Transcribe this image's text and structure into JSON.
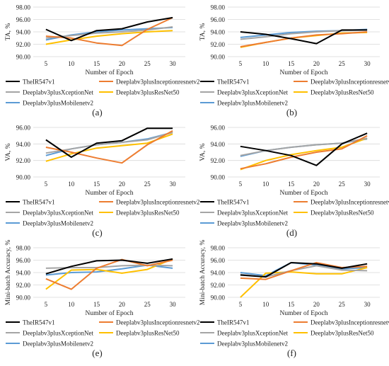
{
  "colors": {
    "TheIR547v1": "#000000",
    "Deeplabv3plusInceptionresnetv2": "#ED7D31",
    "Deeplabv3plusXceptionNet": "#A5A5A5",
    "Deeplabv3plusResNet50": "#FFC000",
    "Deeplabv3plusMobilenetv2": "#5B9BD5"
  },
  "chart_data": [
    {
      "type": "line",
      "panel_label": "(a)",
      "xlabel": "Number of Epoch",
      "ylabel": "TA, %",
      "categories": [
        5,
        10,
        15,
        20,
        25,
        30
      ],
      "ylim": [
        90,
        98
      ],
      "yticks": [
        "90.00",
        "92.00",
        "94.00",
        "96.00",
        "98.00"
      ],
      "grid": true,
      "legend_position": "bottom",
      "series": [
        {
          "name": "TheIR547v1",
          "values": [
            94.4,
            92.6,
            94.2,
            94.5,
            95.6,
            96.3
          ]
        },
        {
          "name": "Deeplabv3plusInceptionresnetv2",
          "values": [
            93.3,
            93.0,
            92.2,
            91.8,
            94.4,
            96.3
          ]
        },
        {
          "name": "Deeplabv3plusXceptionNet",
          "values": [
            93.0,
            93.4,
            93.8,
            94.0,
            94.3,
            94.8
          ]
        },
        {
          "name": "Deeplabv3plusResNet50",
          "values": [
            92.0,
            92.7,
            93.3,
            93.7,
            94.0,
            94.2
          ]
        },
        {
          "name": "Deeplabv3plusMobilenetv2",
          "values": [
            92.7,
            93.5,
            94.0,
            94.3,
            94.5,
            94.7
          ]
        }
      ]
    },
    {
      "type": "line",
      "panel_label": "(b)",
      "xlabel": "Number of Epoch",
      "ylabel": "TA, %",
      "categories": [
        5,
        10,
        15,
        20,
        25,
        30
      ],
      "ylim": [
        90,
        98
      ],
      "yticks": [
        "90.00",
        "92.00",
        "94.00",
        "96.00",
        "98.00"
      ],
      "grid": true,
      "legend_position": "bottom",
      "series": [
        {
          "name": "TheIR547v1",
          "values": [
            94.0,
            93.6,
            92.9,
            92.1,
            94.3,
            94.3
          ]
        },
        {
          "name": "Deeplabv3plusInceptionresnetv2",
          "values": [
            91.6,
            92.3,
            93.0,
            93.5,
            93.7,
            94.0
          ]
        },
        {
          "name": "Deeplabv3plusXceptionNet",
          "values": [
            92.8,
            93.2,
            93.7,
            94.0,
            94.2,
            94.3
          ]
        },
        {
          "name": "Deeplabv3plusResNet50",
          "values": [
            91.5,
            92.3,
            93.0,
            93.4,
            93.8,
            93.9
          ]
        },
        {
          "name": "Deeplabv3plusMobilenetv2",
          "values": [
            93.1,
            93.5,
            93.9,
            94.1,
            94.2,
            94.4
          ]
        }
      ]
    },
    {
      "type": "line",
      "panel_label": "(c)",
      "xlabel": "Number of Epoch",
      "ylabel": "VA, %",
      "categories": [
        5,
        10,
        15,
        20,
        25,
        30
      ],
      "ylim": [
        90,
        96
      ],
      "yticks": [
        "90.00",
        "92.00",
        "94.00",
        "96.00"
      ],
      "grid": true,
      "legend_position": "bottom",
      "series": [
        {
          "name": "TheIR547v1",
          "values": [
            94.5,
            92.4,
            94.1,
            94.4,
            95.9,
            95.9
          ]
        },
        {
          "name": "Deeplabv3plusInceptionresnetv2",
          "values": [
            93.6,
            93.0,
            92.3,
            91.7,
            93.9,
            95.6
          ]
        },
        {
          "name": "Deeplabv3plusXceptionNet",
          "values": [
            92.9,
            93.4,
            93.9,
            94.2,
            94.5,
            95.4
          ]
        },
        {
          "name": "Deeplabv3plusResNet50",
          "values": [
            91.9,
            92.8,
            93.5,
            93.8,
            94.1,
            95.2
          ]
        },
        {
          "name": "Deeplabv3plusMobilenetv2",
          "values": [
            92.6,
            93.4,
            93.9,
            94.2,
            94.6,
            95.4
          ]
        }
      ]
    },
    {
      "type": "line",
      "panel_label": "(d)",
      "xlabel": "Number of Epoch",
      "ylabel": "VA, %",
      "categories": [
        5,
        10,
        15,
        20,
        25,
        30
      ],
      "ylim": [
        90,
        96
      ],
      "yticks": [
        "90.00",
        "92.00",
        "94.00",
        "96.00"
      ],
      "grid": true,
      "legend_position": "bottom",
      "series": [
        {
          "name": "TheIR547v1",
          "values": [
            93.7,
            93.2,
            92.6,
            91.4,
            94.0,
            95.3
          ]
        },
        {
          "name": "Deeplabv3plusInceptionresnetv2",
          "values": [
            91.0,
            91.6,
            92.4,
            93.0,
            93.4,
            95.0
          ]
        },
        {
          "name": "Deeplabv3plusXceptionNet",
          "values": [
            92.6,
            93.2,
            93.6,
            93.9,
            94.1,
            94.7
          ]
        },
        {
          "name": "Deeplabv3plusResNet50",
          "values": [
            90.9,
            92.0,
            92.7,
            93.2,
            93.6,
            94.7
          ]
        },
        {
          "name": "Deeplabv3plusMobilenetv2",
          "values": [
            92.5,
            93.2,
            93.6,
            93.9,
            94.1,
            94.6
          ]
        }
      ]
    },
    {
      "type": "line",
      "panel_label": "(e)",
      "xlabel": "Number of Epoch",
      "ylabel": "Mini-batch Accuracy, %",
      "categories": [
        5,
        10,
        15,
        20,
        25,
        30
      ],
      "ylim": [
        90,
        98
      ],
      "yticks": [
        "90.00",
        "92.00",
        "94.00",
        "96.00",
        "98.00"
      ],
      "grid": true,
      "legend_position": "bottom",
      "series": [
        {
          "name": "TheIR547v1",
          "values": [
            93.8,
            95.0,
            95.9,
            96.0,
            95.5,
            96.2
          ]
        },
        {
          "name": "Deeplabv3plusInceptionresnetv2",
          "values": [
            93.0,
            91.3,
            94.7,
            96.1,
            95.1,
            96.0
          ]
        },
        {
          "name": "Deeplabv3plusXceptionNet",
          "values": [
            94.7,
            94.8,
            94.8,
            95.1,
            95.2,
            95.1
          ]
        },
        {
          "name": "Deeplabv3plusResNet50",
          "values": [
            91.3,
            94.4,
            94.5,
            93.9,
            94.5,
            96.2
          ]
        },
        {
          "name": "Deeplabv3plusMobilenetv2",
          "values": [
            93.6,
            94.0,
            94.1,
            94.6,
            95.2,
            94.7
          ]
        }
      ]
    },
    {
      "type": "line",
      "panel_label": "(f)",
      "xlabel": "Number of Epoch",
      "ylabel": "Mini-batch Accuracy, %",
      "categories": [
        5,
        10,
        15,
        20,
        25,
        30
      ],
      "ylim": [
        90,
        98
      ],
      "yticks": [
        "90.00",
        "92.00",
        "94.00",
        "96.00",
        "98.00"
      ],
      "grid": true,
      "legend_position": "bottom",
      "series": [
        {
          "name": "TheIR547v1",
          "values": [
            93.6,
            93.3,
            95.6,
            95.4,
            94.7,
            95.4
          ]
        },
        {
          "name": "Deeplabv3plusInceptionresnetv2",
          "values": [
            93.1,
            92.9,
            94.3,
            95.6,
            94.8,
            95.0
          ]
        },
        {
          "name": "Deeplabv3plusXceptionNet",
          "values": [
            93.7,
            93.3,
            94.3,
            95.1,
            94.4,
            94.3
          ]
        },
        {
          "name": "Deeplabv3plusResNet50",
          "values": [
            90.0,
            93.9,
            94.1,
            93.8,
            93.8,
            94.8
          ]
        },
        {
          "name": "Deeplabv3plusMobilenetv2",
          "values": [
            94.0,
            93.5,
            95.6,
            95.2,
            94.6,
            94.8
          ]
        }
      ]
    }
  ]
}
